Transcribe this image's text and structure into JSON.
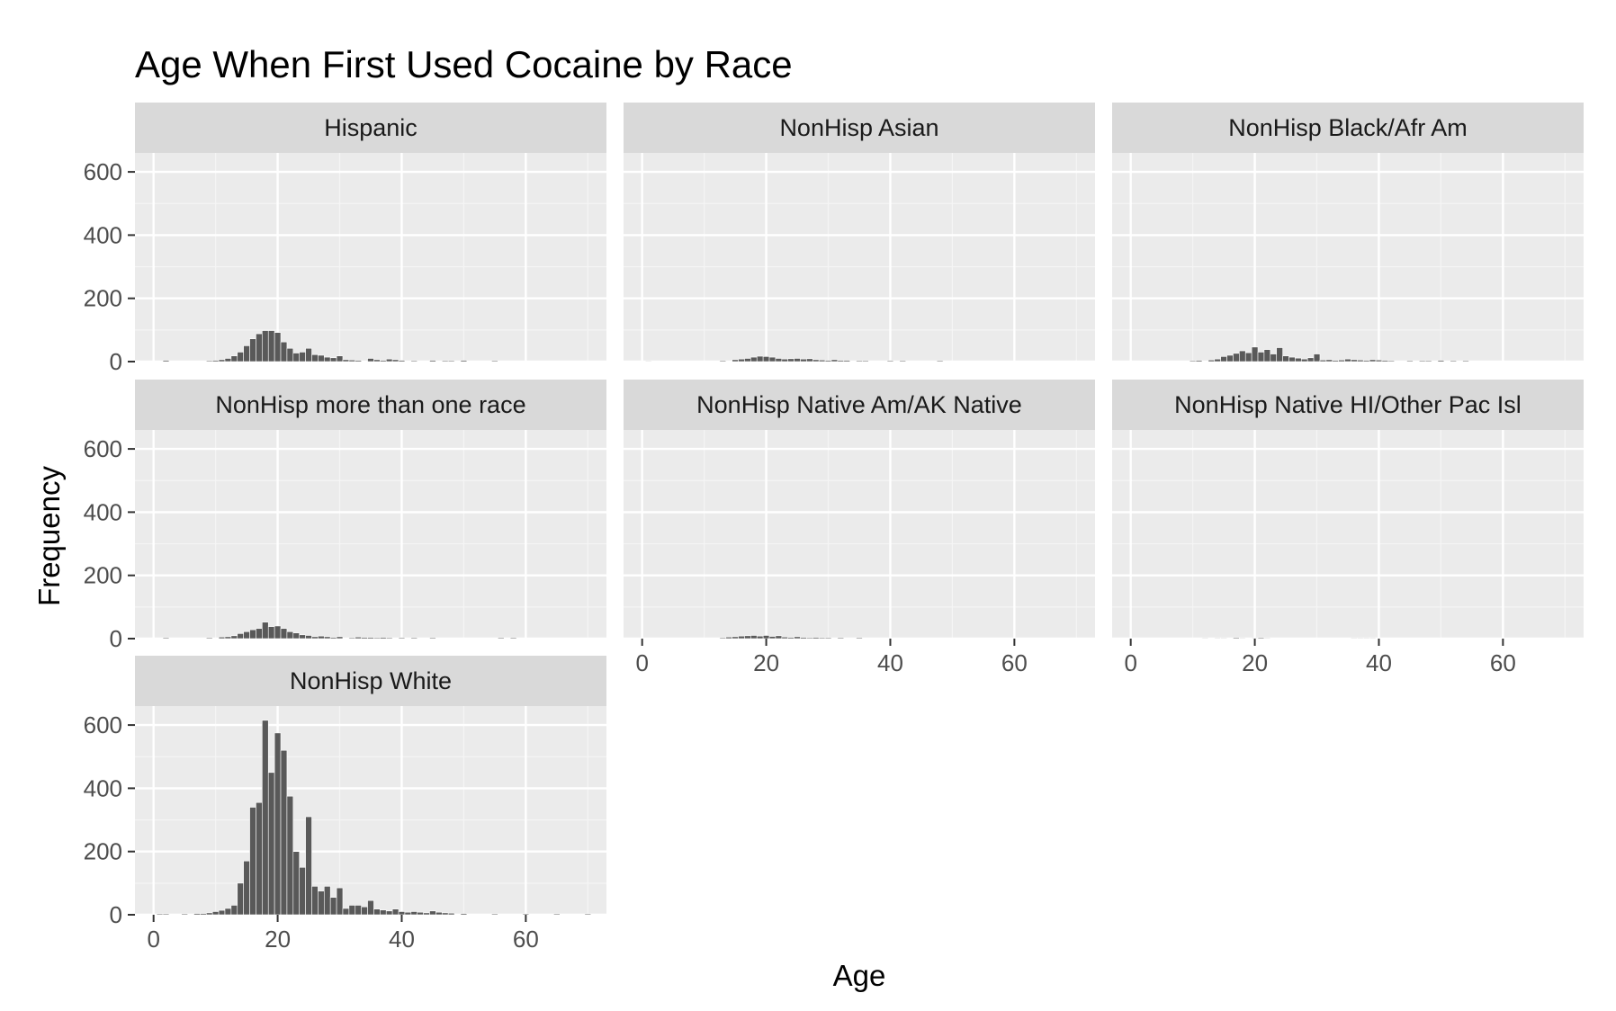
{
  "chart_data": {
    "type": "bar",
    "title": "Age When First Used Cocaine by Race",
    "xlabel": "Age",
    "ylabel": "Frequency",
    "xlim": [
      -3,
      73
    ],
    "ylim": [
      0,
      660
    ],
    "x_ticks": [
      0,
      20,
      40,
      60
    ],
    "y_ticks": [
      0,
      200,
      400,
      600
    ],
    "grid": true,
    "layout": "facet_wrap, 3 columns",
    "bar_color": "#595959",
    "panel_background": "#ebebeb",
    "strip_background": "#d9d9d9",
    "facets": [
      {
        "name": "Hispanic",
        "ages": [
          2,
          9,
          10,
          11,
          12,
          13,
          14,
          15,
          16,
          17,
          18,
          19,
          20,
          21,
          22,
          23,
          24,
          25,
          26,
          27,
          28,
          29,
          30,
          31,
          32,
          33,
          35,
          36,
          37,
          38,
          39,
          40,
          42,
          45,
          47,
          48,
          50,
          55
        ],
        "counts": [
          4,
          3,
          4,
          6,
          10,
          18,
          30,
          50,
          72,
          88,
          98,
          98,
          92,
          62,
          42,
          27,
          30,
          42,
          22,
          20,
          14,
          12,
          18,
          6,
          5,
          4,
          10,
          6,
          4,
          8,
          6,
          4,
          3,
          4,
          3,
          3,
          4,
          3
        ]
      },
      {
        "name": "NonHisp Asian",
        "ages": [
          1,
          13,
          15,
          16,
          17,
          18,
          19,
          20,
          21,
          22,
          23,
          24,
          25,
          26,
          27,
          28,
          29,
          30,
          31,
          32,
          33,
          35,
          36,
          40,
          42,
          48
        ],
        "counts": [
          2,
          3,
          6,
          8,
          10,
          14,
          17,
          16,
          14,
          10,
          8,
          9,
          10,
          8,
          9,
          6,
          5,
          4,
          6,
          4,
          4,
          3,
          3,
          3,
          3,
          3
        ]
      },
      {
        "name": "NonHisp Black/Afr Am",
        "ages": [
          10,
          11,
          13,
          14,
          15,
          16,
          17,
          18,
          19,
          20,
          21,
          22,
          23,
          24,
          25,
          26,
          27,
          28,
          29,
          30,
          31,
          32,
          33,
          34,
          35,
          36,
          37,
          38,
          39,
          40,
          41,
          42,
          45,
          47,
          48,
          50,
          52,
          54
        ],
        "counts": [
          3,
          4,
          5,
          8,
          16,
          20,
          26,
          34,
          28,
          46,
          30,
          38,
          24,
          44,
          18,
          14,
          11,
          8,
          12,
          24,
          5,
          6,
          4,
          5,
          8,
          6,
          5,
          4,
          6,
          5,
          4,
          3,
          3,
          3,
          3,
          4,
          3,
          3
        ]
      },
      {
        "name": "NonHisp more than one race",
        "ages": [
          2,
          9,
          11,
          12,
          13,
          14,
          15,
          16,
          17,
          18,
          19,
          20,
          21,
          22,
          23,
          24,
          25,
          26,
          27,
          28,
          29,
          30,
          32,
          33,
          34,
          35,
          36,
          37,
          38,
          40,
          42,
          45,
          56,
          58
        ],
        "counts": [
          3,
          3,
          5,
          6,
          9,
          16,
          22,
          28,
          32,
          52,
          38,
          40,
          32,
          22,
          18,
          12,
          10,
          6,
          8,
          6,
          4,
          6,
          3,
          5,
          4,
          4,
          3,
          4,
          3,
          3,
          3,
          3,
          3,
          3
        ]
      },
      {
        "name": "NonHisp Native Am/AK Native",
        "ages": [
          13,
          14,
          15,
          16,
          17,
          18,
          19,
          20,
          21,
          22,
          23,
          24,
          25,
          26,
          27,
          28,
          29,
          30,
          32,
          35
        ],
        "counts": [
          3,
          5,
          6,
          8,
          9,
          10,
          8,
          10,
          7,
          9,
          5,
          4,
          6,
          4,
          3,
          4,
          3,
          3,
          3,
          3
        ]
      },
      {
        "name": "NonHisp Native HI/Other Pac Isl",
        "ages": [
          12,
          14,
          15,
          17,
          18,
          20,
          21,
          22,
          36,
          37,
          38,
          39
        ],
        "counts": [
          2,
          2,
          2,
          3,
          2,
          2,
          3,
          2,
          2,
          2,
          2,
          2
        ]
      },
      {
        "name": "NonHisp White",
        "ages": [
          1,
          2,
          5,
          7,
          8,
          9,
          10,
          11,
          12,
          13,
          14,
          15,
          16,
          17,
          18,
          19,
          20,
          21,
          22,
          23,
          24,
          25,
          26,
          27,
          28,
          29,
          30,
          31,
          32,
          33,
          34,
          35,
          36,
          37,
          38,
          39,
          40,
          41,
          42,
          43,
          44,
          45,
          46,
          47,
          48,
          50,
          55,
          60,
          65,
          70
        ],
        "counts": [
          3,
          3,
          3,
          4,
          4,
          6,
          10,
          14,
          20,
          30,
          100,
          170,
          340,
          355,
          615,
          450,
          575,
          520,
          375,
          200,
          150,
          310,
          90,
          75,
          90,
          55,
          85,
          20,
          30,
          30,
          25,
          45,
          18,
          15,
          12,
          18,
          10,
          8,
          10,
          8,
          6,
          12,
          8,
          6,
          5,
          4,
          3,
          3,
          3,
          3
        ]
      }
    ]
  }
}
